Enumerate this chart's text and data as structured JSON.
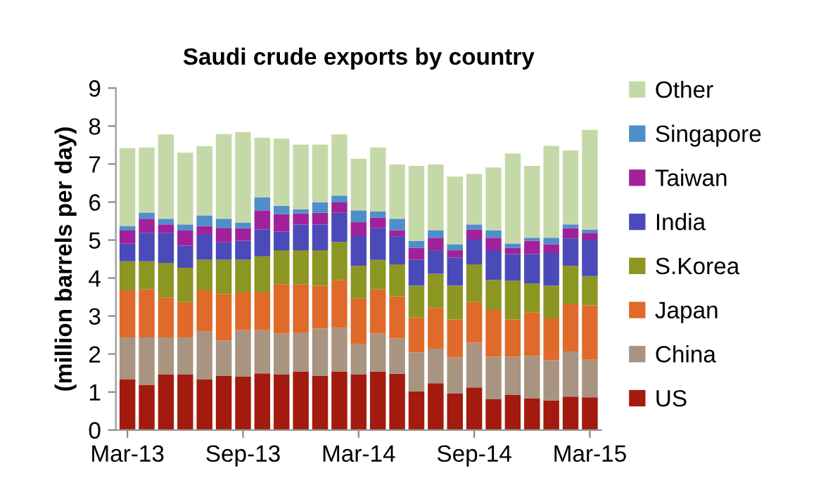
{
  "chart_data": {
    "type": "bar",
    "stacked": true,
    "title": "Saudi crude exports by country",
    "ylabel": "(million barrels per day)",
    "categories": [
      "Mar-13",
      null,
      null,
      null,
      null,
      null,
      "Sep-13",
      null,
      null,
      null,
      null,
      null,
      "Mar-14",
      null,
      null,
      null,
      null,
      null,
      "Sep-14",
      null,
      null,
      null,
      null,
      null,
      "Mar-15"
    ],
    "ylim": [
      0,
      9
    ],
    "yticks": [
      0,
      1,
      2,
      3,
      4,
      5,
      6,
      7,
      8,
      9
    ],
    "grid": false,
    "legend": "right",
    "series": [
      {
        "name": "US",
        "color": "#a31a0e",
        "values": [
          1.33,
          1.19,
          1.46,
          1.46,
          1.33,
          1.43,
          1.4,
          1.49,
          1.46,
          1.54,
          1.42,
          1.54,
          1.46,
          1.54,
          1.48,
          1.02,
          1.23,
          0.96,
          1.12,
          0.81,
          0.93,
          0.84,
          0.78,
          0.88,
          0.86
        ]
      },
      {
        "name": "China",
        "color": "#a89480",
        "values": [
          1.11,
          1.25,
          0.98,
          0.98,
          1.26,
          0.93,
          1.23,
          1.14,
          1.08,
          1.03,
          1.25,
          1.15,
          0.8,
          1.0,
          0.93,
          1.02,
          0.91,
          0.95,
          1.18,
          1.12,
          1.0,
          1.11,
          1.06,
          1.19,
          0.99
        ]
      },
      {
        "name": "Japan",
        "color": "#e06a2a",
        "values": [
          1.24,
          1.26,
          1.05,
          0.93,
          1.09,
          1.22,
          0.99,
          0.99,
          1.3,
          1.27,
          1.13,
          1.26,
          1.21,
          1.16,
          1.11,
          0.92,
          1.07,
          1.0,
          1.07,
          1.23,
          0.98,
          1.14,
          1.1,
          1.24,
          1.43
        ]
      },
      {
        "name": "S.Korea",
        "color": "#8c9622",
        "values": [
          0.76,
          0.74,
          0.91,
          0.9,
          0.8,
          0.9,
          0.86,
          0.95,
          0.89,
          0.89,
          0.93,
          1.0,
          0.85,
          0.78,
          0.84,
          0.84,
          0.9,
          0.89,
          0.99,
          0.79,
          1.02,
          0.77,
          0.86,
          1.01,
          0.77
        ]
      },
      {
        "name": "India",
        "color": "#4a4ab8",
        "values": [
          0.47,
          0.75,
          0.79,
          0.58,
          0.66,
          0.46,
          0.5,
          0.71,
          0.49,
          0.68,
          0.68,
          0.77,
          0.78,
          0.83,
          0.74,
          0.68,
          0.62,
          0.74,
          0.65,
          0.78,
          0.7,
          0.77,
          0.86,
          0.72,
          0.96
        ]
      },
      {
        "name": "Taiwan",
        "color": "#a0229a",
        "values": [
          0.34,
          0.37,
          0.22,
          0.4,
          0.23,
          0.38,
          0.33,
          0.5,
          0.46,
          0.29,
          0.31,
          0.27,
          0.37,
          0.28,
          0.16,
          0.31,
          0.33,
          0.19,
          0.27,
          0.33,
          0.16,
          0.35,
          0.23,
          0.27,
          0.18
        ]
      },
      {
        "name": "Singapore",
        "color": "#4f8ec8",
        "values": [
          0.12,
          0.16,
          0.15,
          0.16,
          0.28,
          0.24,
          0.15,
          0.34,
          0.22,
          0.11,
          0.27,
          0.18,
          0.31,
          0.16,
          0.3,
          0.19,
          0.2,
          0.16,
          0.13,
          0.19,
          0.12,
          0.08,
          0.17,
          0.1,
          0.09
        ]
      },
      {
        "name": "Other",
        "color": "#c5d9a8",
        "values": [
          2.05,
          1.72,
          2.22,
          1.89,
          1.82,
          2.23,
          2.38,
          1.57,
          1.77,
          1.7,
          1.52,
          1.61,
          1.36,
          1.69,
          1.43,
          1.97,
          1.73,
          1.78,
          1.33,
          1.66,
          2.37,
          1.89,
          2.42,
          1.95,
          2.62
        ]
      }
    ]
  }
}
